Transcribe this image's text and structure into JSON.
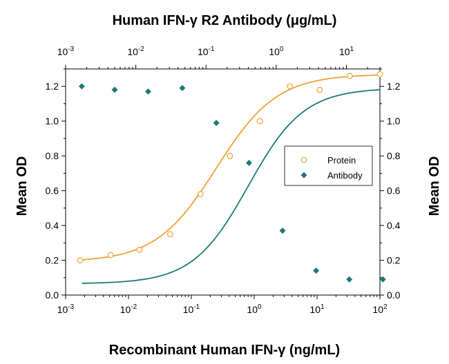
{
  "chart_data": {
    "type": "scatter",
    "title": "Human IFN-γ R2 Antibody (μg/mL)",
    "xlabel": "Recombinant Human IFN-γ (ng/mL)",
    "ylabel": "Mean OD",
    "ylabel_right": "Mean OD",
    "x_scale": "log",
    "xlim": [
      0.001,
      100
    ],
    "ylim": [
      0.0,
      1.3
    ],
    "top_x_scale": "log",
    "top_xlim": [
      0.001,
      30
    ],
    "grid": false,
    "legend_position": "right-center",
    "x_ticks": [
      {
        "value": 0.001,
        "base": "10",
        "exp": "-3"
      },
      {
        "value": 0.01,
        "base": "10",
        "exp": "-2"
      },
      {
        "value": 0.1,
        "base": "10",
        "exp": "-1"
      },
      {
        "value": 1,
        "base": "10",
        "exp": "0"
      },
      {
        "value": 10,
        "base": "10",
        "exp": "1"
      },
      {
        "value": 100,
        "base": "10",
        "exp": "2"
      }
    ],
    "top_x_ticks": [
      {
        "value": 0.001,
        "base": "10",
        "exp": "-3"
      },
      {
        "value": 0.01,
        "base": "10",
        "exp": "-2"
      },
      {
        "value": 0.1,
        "base": "10",
        "exp": "-1"
      },
      {
        "value": 1,
        "base": "10",
        "exp": "0"
      },
      {
        "value": 10,
        "base": "10",
        "exp": "1"
      }
    ],
    "y_ticks": [
      "0.0",
      "0.2",
      "0.4",
      "0.6",
      "0.8",
      "1.0",
      "1.2"
    ],
    "series": [
      {
        "name": "Protein",
        "axis": "bottom",
        "marker": "open-circle",
        "color": "#F0A030",
        "x": [
          0.0017,
          0.0052,
          0.015,
          0.046,
          0.14,
          0.41,
          1.23,
          3.7,
          11,
          33,
          100
        ],
        "y": [
          0.2,
          0.23,
          0.26,
          0.35,
          0.58,
          0.8,
          1.0,
          1.2,
          1.18,
          1.26,
          1.27
        ],
        "fit": {
          "bottom": 0.19,
          "top": 1.27,
          "ec50": 0.25,
          "hill": 0.9
        }
      },
      {
        "name": "Antibody",
        "axis": "top",
        "marker": "filled-diamond",
        "color": "#1A7A74",
        "x": [
          0.0017,
          0.005,
          0.015,
          0.046,
          0.14,
          0.41,
          1.23,
          3.7,
          11,
          33
        ],
        "y": [
          1.2,
          1.18,
          1.17,
          1.19,
          0.99,
          0.76,
          0.37,
          0.14,
          0.09,
          0.09
        ],
        "fit": {
          "bottom": 0.065,
          "top": 1.19,
          "ec50": 0.4,
          "hill": 1.1
        }
      }
    ]
  }
}
